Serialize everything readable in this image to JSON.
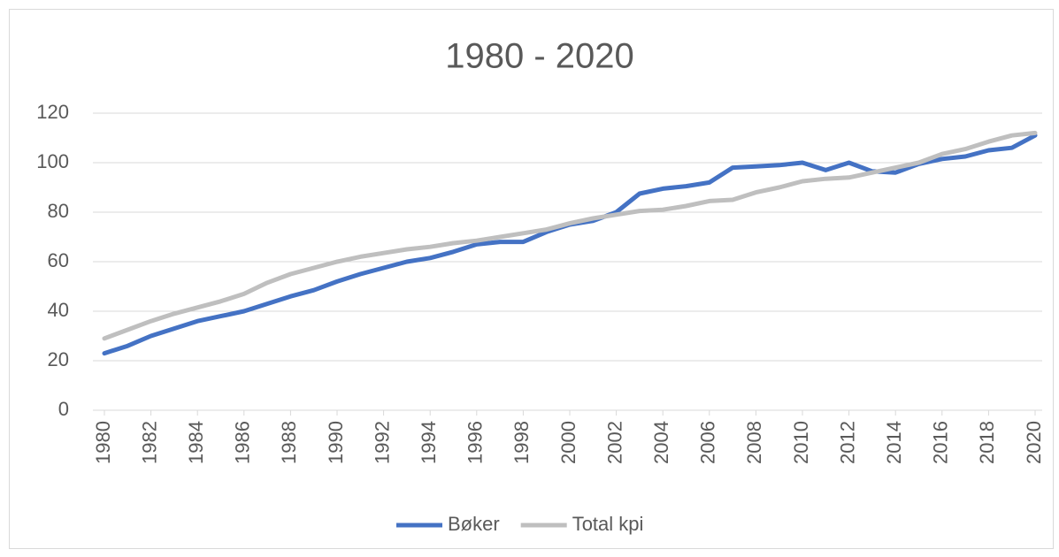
{
  "chart_data": {
    "type": "line",
    "title": "1980 - 2020",
    "x": [
      1980,
      1981,
      1982,
      1983,
      1984,
      1985,
      1986,
      1987,
      1988,
      1989,
      1990,
      1991,
      1992,
      1993,
      1994,
      1995,
      1996,
      1997,
      1998,
      1999,
      2000,
      2001,
      2002,
      2003,
      2004,
      2005,
      2006,
      2007,
      2008,
      2009,
      2010,
      2011,
      2012,
      2013,
      2014,
      2015,
      2016,
      2017,
      2018,
      2019,
      2020
    ],
    "xlim": [
      1980,
      2020
    ],
    "xticks": [
      1980,
      1982,
      1984,
      1986,
      1988,
      1990,
      1992,
      1994,
      1996,
      1998,
      2000,
      2002,
      2004,
      2006,
      2008,
      2010,
      2012,
      2014,
      2016,
      2018,
      2020
    ],
    "ylim": [
      0,
      120
    ],
    "yticks": [
      0,
      20,
      40,
      60,
      80,
      100,
      120
    ],
    "grid": true,
    "legend": "bottom",
    "series": [
      {
        "name": "Bøker",
        "color": "#4472c4",
        "values": [
          23,
          26,
          30,
          33,
          36,
          38,
          40,
          43,
          46,
          48.5,
          52,
          55,
          57.5,
          60,
          61.5,
          64,
          67,
          68,
          68,
          72,
          75,
          76.5,
          80,
          87.5,
          89.5,
          90.5,
          92,
          98,
          98.5,
          99,
          100,
          97,
          100,
          96.5,
          96,
          99.5,
          101.5,
          102.5,
          105,
          106,
          111
        ]
      },
      {
        "name": "Total kpi",
        "color": "#bfbfbf",
        "values": [
          29,
          32.5,
          36,
          39,
          41.5,
          44,
          47,
          51.5,
          55,
          57.5,
          60,
          62,
          63.5,
          65,
          66,
          67.5,
          68.5,
          70,
          71.5,
          73,
          75.5,
          77.5,
          79,
          80.5,
          81,
          82.5,
          84.5,
          85,
          88,
          90,
          92.5,
          93.5,
          94,
          96,
          98,
          100,
          103.5,
          105.5,
          108.5,
          111,
          112
        ]
      }
    ]
  }
}
